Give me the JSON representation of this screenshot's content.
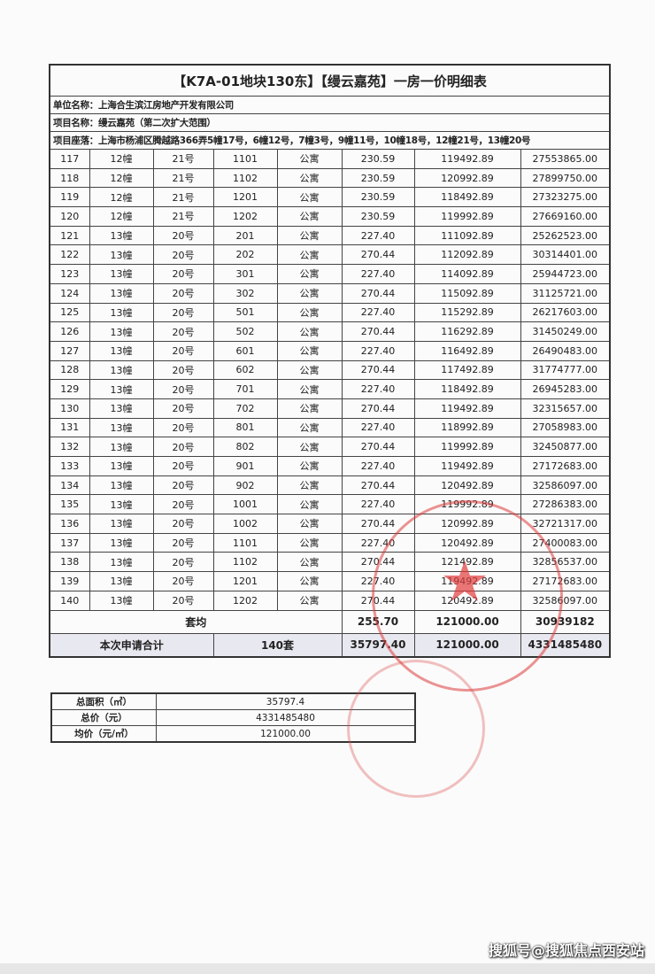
{
  "title": "【K7A-01地块130东】【缦云嘉苑】一房一价明细表",
  "company": "单位名称：上海合生滨江房地产开发有限公司",
  "project": "项目名称：缦云嘉苑（第二次扩大范围）",
  "location": "项目座落：上海市杨浦区腾越路366弄5幢17号，6幢12号，7幢3号，9幢11号，10幢18号，12幢21号，13幢20号",
  "rows": [
    [
      "117",
      "12幢",
      "21号",
      "1101",
      "公寓",
      "230.59",
      "119492.89",
      "27553865.00"
    ],
    [
      "118",
      "12幢",
      "21号",
      "1102",
      "公寓",
      "230.59",
      "120992.89",
      "27899750.00"
    ],
    [
      "119",
      "12幢",
      "21号",
      "1201",
      "公寓",
      "230.59",
      "118492.89",
      "27323275.00"
    ],
    [
      "120",
      "12幢",
      "21号",
      "1202",
      "公寓",
      "230.59",
      "119992.89",
      "27669160.00"
    ],
    [
      "121",
      "13幢",
      "20号",
      "201",
      "公寓",
      "227.40",
      "111092.89",
      "25262523.00"
    ],
    [
      "122",
      "13幢",
      "20号",
      "202",
      "公寓",
      "270.44",
      "112092.89",
      "30314401.00"
    ],
    [
      "123",
      "13幢",
      "20号",
      "301",
      "公寓",
      "227.40",
      "114092.89",
      "25944723.00"
    ],
    [
      "124",
      "13幢",
      "20号",
      "302",
      "公寓",
      "270.44",
      "115092.89",
      "31125721.00"
    ],
    [
      "125",
      "13幢",
      "20号",
      "501",
      "公寓",
      "227.40",
      "115292.89",
      "26217603.00"
    ],
    [
      "126",
      "13幢",
      "20号",
      "502",
      "公寓",
      "270.44",
      "116292.89",
      "31450249.00"
    ],
    [
      "127",
      "13幢",
      "20号",
      "601",
      "公寓",
      "227.40",
      "116492.89",
      "26490483.00"
    ],
    [
      "128",
      "13幢",
      "20号",
      "602",
      "公寓",
      "270.44",
      "117492.89",
      "31774777.00"
    ],
    [
      "129",
      "13幢",
      "20号",
      "701",
      "公寓",
      "227.40",
      "118492.89",
      "26945283.00"
    ],
    [
      "130",
      "13幢",
      "20号",
      "702",
      "公寓",
      "270.44",
      "119492.89",
      "32315657.00"
    ],
    [
      "131",
      "13幢",
      "20号",
      "801",
      "公寓",
      "227.40",
      "118992.89",
      "27058983.00"
    ],
    [
      "132",
      "13幢",
      "20号",
      "802",
      "公寓",
      "270.44",
      "119992.89",
      "32450877.00"
    ],
    [
      "133",
      "13幢",
      "20号",
      "901",
      "公寓",
      "227.40",
      "119492.89",
      "27172683.00"
    ],
    [
      "134",
      "13幢",
      "20号",
      "902",
      "公寓",
      "270.44",
      "120492.89",
      "32586097.00"
    ],
    [
      "135",
      "13幢",
      "20号",
      "1001",
      "公寓",
      "227.40",
      "119992.89",
      "27286383.00"
    ],
    [
      "136",
      "13幢",
      "20号",
      "1002",
      "公寓",
      "270.44",
      "120992.89",
      "32721317.00"
    ],
    [
      "137",
      "13幢",
      "20号",
      "1101",
      "公寓",
      "227.40",
      "120492.89",
      "27400083.00"
    ],
    [
      "138",
      "13幢",
      "20号",
      "1102",
      "公寓",
      "270.44",
      "121492.89",
      "32856537.00"
    ],
    [
      "139",
      "13幢",
      "20号",
      "1201",
      "公寓",
      "227.40",
      "119492.89",
      "27172683.00"
    ],
    [
      "140",
      "13幢",
      "20号",
      "1202",
      "公寓",
      "270.44",
      "120492.89",
      "32586097.00"
    ]
  ],
  "average": {
    "label": "套均",
    "area": "255.70",
    "unit_price": "121000.00",
    "total": "30939182"
  },
  "total": {
    "label": "本次申请合计",
    "count": "140套",
    "area": "35797.40",
    "unit_price": "121000.00",
    "total": "4331485480"
  },
  "summary": [
    {
      "label": "总面积（㎡）",
      "value": "35797.4"
    },
    {
      "label": "总价（元）",
      "value": "4331485480"
    },
    {
      "label": "均价（元/㎡）",
      "value": "121000.00"
    }
  ],
  "watermark": "搜狐号@搜狐焦点西安站",
  "stamp_color": "#e03c3c"
}
